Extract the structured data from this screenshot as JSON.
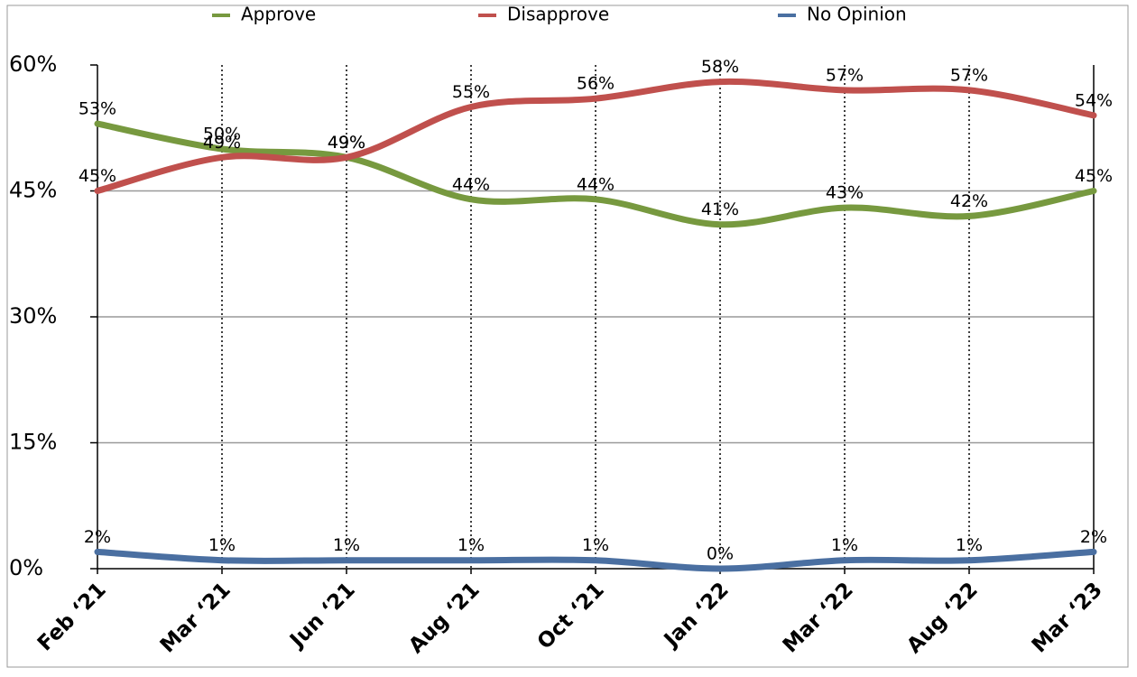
{
  "chart_data": {
    "type": "line",
    "categories": [
      "Feb ‘21",
      "Mar ‘21",
      "Jun ‘21",
      "Aug ‘21",
      "Oct ‘21",
      "Jan ‘22",
      "Mar ‘22",
      "Aug ‘22",
      "Mar ‘23"
    ],
    "series": [
      {
        "name": "Approve",
        "color": "#77993f",
        "values": [
          53,
          50,
          49,
          44,
          44,
          41,
          43,
          42,
          45
        ],
        "value_labels": [
          "53%",
          "50%",
          "49%",
          "44%",
          "44%",
          "41%",
          "43%",
          "42%",
          "45%"
        ]
      },
      {
        "name": "Disapprove",
        "color": "#c0504d",
        "values": [
          45,
          49,
          49,
          55,
          56,
          58,
          57,
          57,
          54
        ],
        "value_labels": [
          "45%",
          "49%",
          "49%",
          "55%",
          "56%",
          "58%",
          "57%",
          "57%",
          "54%"
        ]
      },
      {
        "name": "No Opinion",
        "color": "#4a6fa1",
        "values": [
          2,
          1,
          1,
          1,
          1,
          0,
          1,
          1,
          2
        ],
        "value_labels": [
          "2%",
          "1%",
          "1%",
          "1%",
          "1%",
          "0%",
          "1%",
          "1%",
          "2%"
        ]
      }
    ],
    "ylim": [
      0,
      60
    ],
    "yticks": [
      {
        "value": 0,
        "label": "0%"
      },
      {
        "value": 15,
        "label": "15%"
      },
      {
        "value": 30,
        "label": "30%"
      },
      {
        "value": 45,
        "label": "45%"
      },
      {
        "value": 60,
        "label": "60%"
      }
    ],
    "grid": true,
    "legend": "top"
  }
}
